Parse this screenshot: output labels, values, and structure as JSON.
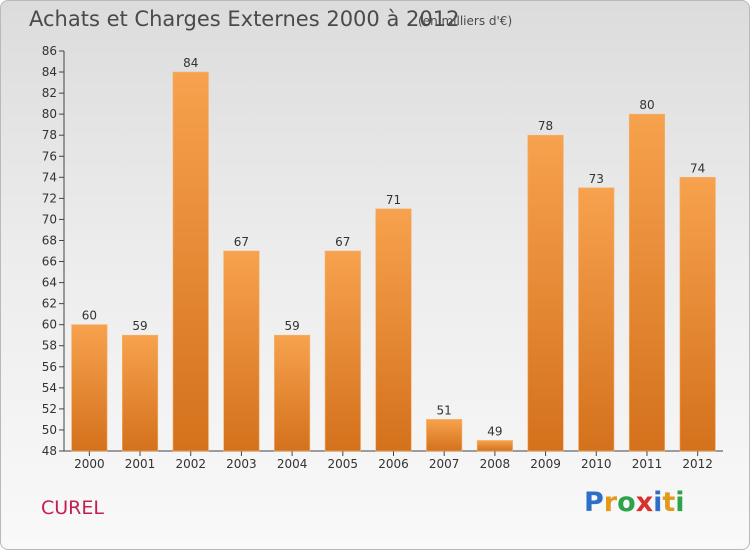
{
  "header": {
    "title": "Achats et Charges Externes 2000 à 2012",
    "subtitle": "(en milliers d'€)"
  },
  "commune": "CUREL",
  "logo": {
    "letters": [
      "P",
      "r",
      "o",
      "x",
      "i",
      "t",
      "i"
    ],
    "colors": [
      "#2d6fc7",
      "#e39a1a",
      "#2fa34a",
      "#d8312c",
      "#2d6fc7",
      "#e39a1a",
      "#2fa34a"
    ]
  },
  "chart_data": {
    "type": "bar",
    "categories": [
      "2000",
      "2001",
      "2002",
      "2003",
      "2004",
      "2005",
      "2006",
      "2007",
      "2008",
      "2009",
      "2010",
      "2011",
      "2012"
    ],
    "values": [
      60,
      59,
      84,
      67,
      59,
      67,
      71,
      51,
      49,
      78,
      73,
      80,
      74
    ],
    "title": "Achats et Charges Externes 2000 à 2012",
    "subtitle": "(en milliers d'€)",
    "ylim": [
      48,
      86
    ],
    "yticks": [
      48,
      50,
      52,
      54,
      56,
      58,
      60,
      62,
      64,
      66,
      68,
      70,
      72,
      74,
      76,
      78,
      80,
      82,
      84,
      86
    ],
    "grid": false,
    "bar_color_top": "#f7a24e",
    "bar_color_bottom": "#d4711c"
  }
}
